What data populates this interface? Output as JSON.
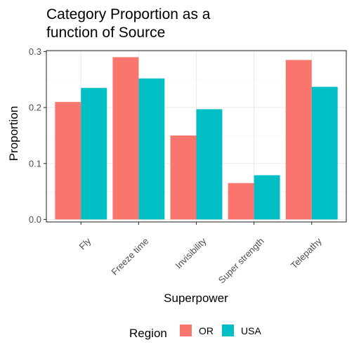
{
  "chart_data": {
    "type": "bar",
    "title_lines": [
      "Category Proportion as a",
      "function of Source"
    ],
    "xlabel": "Superpower",
    "ylabel": "Proportion",
    "categories": [
      "Fly",
      "Freeze time",
      "Invisibility",
      "Super strength",
      "Telepathy"
    ],
    "series": [
      {
        "name": "OR",
        "color": "#F8766D",
        "values": [
          0.21,
          0.29,
          0.15,
          0.065,
          0.285
        ]
      },
      {
        "name": "USA",
        "color": "#00BFC4",
        "values": [
          0.235,
          0.252,
          0.197,
          0.079,
          0.237
        ]
      }
    ],
    "ylim": [
      0,
      0.3
    ],
    "yticks": [
      0.0,
      0.1,
      0.2,
      0.3
    ],
    "ytick_labels": [
      "0.0",
      "0.1",
      "0.2",
      "0.3"
    ],
    "legend": {
      "title": "Region",
      "position": "bottom"
    },
    "grid": true,
    "theme": "bw"
  }
}
